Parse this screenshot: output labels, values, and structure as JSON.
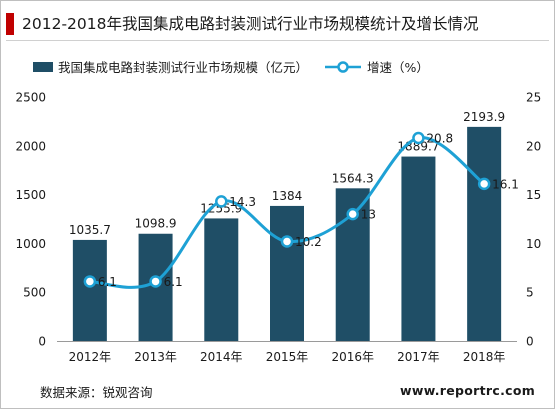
{
  "title": "2012-2018年我国集成电路封装测试行业市场规模统计及增长情况",
  "source": "数据来源：锐观咨询",
  "website": "www.reportrc.com",
  "colors": {
    "bar": "#1f4e66",
    "line": "#1ea1d5",
    "title_accent": "#c00000"
  },
  "chart_data": {
    "type": "bar",
    "categories": [
      "2012年",
      "2013年",
      "2014年",
      "2015年",
      "2016年",
      "2017年",
      "2018年"
    ],
    "series": [
      {
        "name": "我国集成电路封装测试行业市场规模（亿元）",
        "type": "bar",
        "axis": "left",
        "values": [
          1035.7,
          1098.9,
          1255.9,
          1384,
          1564.3,
          1889.7,
          2193.9
        ],
        "labels": [
          "1035.7",
          "1098.9",
          "1255.9",
          "1384",
          "1564.3",
          "1889.7",
          "2193.9"
        ]
      },
      {
        "name": "增速（%）",
        "type": "line",
        "axis": "right",
        "values": [
          6.1,
          6.1,
          14.3,
          10.2,
          13,
          20.8,
          16.1
        ],
        "labels": [
          "6.1",
          "6.1",
          "14.3",
          "10.2",
          "13",
          "20.8",
          "16.1"
        ]
      }
    ],
    "ylim": [
      0,
      2500
    ],
    "yticks": [
      0,
      500,
      1000,
      1500,
      2000,
      2500
    ],
    "y2lim": [
      0,
      25
    ],
    "y2ticks": [
      0,
      5,
      10,
      15,
      20,
      25
    ],
    "legend": "top-left",
    "grid": false
  }
}
